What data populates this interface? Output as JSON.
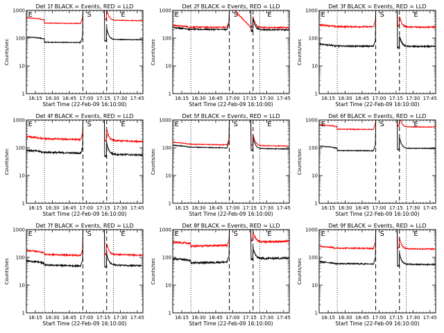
{
  "chart_data": {
    "type": "line",
    "time_axis": {
      "tick_labels": [
        "16:15",
        "16:30",
        "16:45",
        "17:00",
        "17:15",
        "17:30",
        "17:45"
      ],
      "tick_minutes": [
        975,
        990,
        1005,
        1020,
        1035,
        1050,
        1065
      ],
      "xlim_minutes": [
        967,
        1070
      ],
      "xlabel": "Start Time (22-Feb-09 16:10:00)"
    },
    "y_axis": {
      "scale": "log",
      "ylim": [
        1,
        1000
      ],
      "tick_labels": [
        "1",
        "10",
        "100",
        "1000"
      ],
      "ylabel": "Counts/sec"
    },
    "legend": {
      "black": "Events",
      "red": "LLD"
    },
    "markers": {
      "E1": {
        "label": "E",
        "minute": 968
      },
      "S": {
        "label": "S",
        "minute": 1020
      },
      "E2": {
        "label": "E",
        "minute": 1050
      },
      "dotted_minutes": [
        983,
        1044
      ],
      "dashed_minutes": [
        1017,
        1038
      ]
    },
    "panels": [
      {
        "title": "Det 1f BLACK = Events, RED = LLD",
        "events_level": 88,
        "lld_level": 430,
        "dip": 0.75,
        "peak": 1000,
        "slope": 1.1,
        "noise": 0.03,
        "lld_hump": 1.0
      },
      {
        "title": "Det 2f BLACK = Events, RED = LLD",
        "events_level": 200,
        "lld_level": 240,
        "dip": 1.0,
        "peak": 230,
        "slope": 1.05,
        "noise": 0.05,
        "lld_hump": 5.0
      },
      {
        "title": "Det 3f BLACK = Events, RED = LLD",
        "events_level": 50,
        "lld_level": 250,
        "dip": 1.0,
        "peak": 130,
        "slope": 1.05,
        "noise": 0.06,
        "lld_hump": 1.0
      },
      {
        "title": "Det 4f BLACK = Events, RED = LLD",
        "events_level": 55,
        "lld_level": 170,
        "dip": 1.0,
        "peak": 150,
        "slope": 1.3,
        "noise": 0.07,
        "lld_hump": 1.0
      },
      {
        "title": "Det 5f BLACK = Events, RED = LLD",
        "events_level": 90,
        "lld_level": 115,
        "dip": 1.0,
        "peak": 120,
        "slope": 1.2,
        "noise": 0.03,
        "lld_hump": 1.0
      },
      {
        "title": "Det 6f BLACK = Events, RED = LLD",
        "events_level": 95,
        "lld_level": 560,
        "dip": 0.8,
        "peak": 150,
        "slope": 1.05,
        "noise": 0.03,
        "lld_hump": 1.0
      },
      {
        "title": "Det 7f BLACK = Events, RED = LLD",
        "events_level": 50,
        "lld_level": 120,
        "dip": 0.85,
        "peak": 90,
        "slope": 1.3,
        "noise": 0.06,
        "lld_hump": 1.0
      },
      {
        "title": "Det 8f BLACK = Events, RED = LLD",
        "events_level": 95,
        "lld_level": 380,
        "dip": 0.8,
        "peak": 150,
        "slope": 0.8,
        "noise": 0.08,
        "lld_hump": 1.0
      },
      {
        "title": "Det 9f BLACK = Events, RED = LLD",
        "events_level": 55,
        "lld_level": 200,
        "dip": 1.0,
        "peak": 110,
        "slope": 1.1,
        "noise": 0.05,
        "lld_hump": 1.0
      }
    ]
  }
}
